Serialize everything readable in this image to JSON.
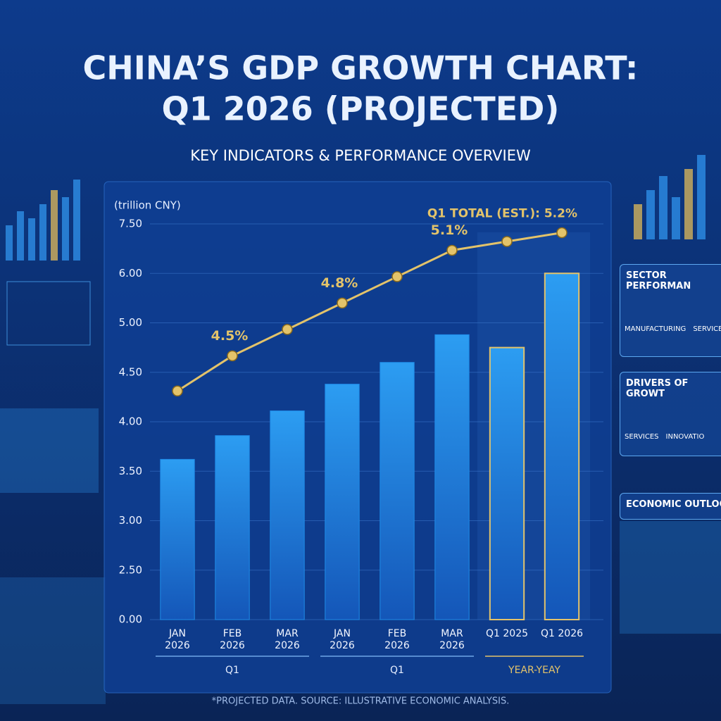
{
  "chart_data": {
    "type": "bar",
    "title": "CHINA’S GDP GROWTH CHART:",
    "title_line2": "Q1 2026 (PROJECTED)",
    "subtitle": "KEY INDICATORS & PERFORMANCE OVERVIEW",
    "y_label": "(trillion CNY)",
    "footnote": "*PROJECTED DATA. SOURCE: ILLUSTRATIVE ECONOMIC ANALYSIS.",
    "categories": [
      "JAN 2026",
      "FEB 2026",
      "MAR 2026",
      "JAN 2026",
      "FEB 2026",
      "MAR 2026",
      "Q1 2025",
      "Q1 2026"
    ],
    "groups": [
      {
        "label": "Q1",
        "count": 3
      },
      {
        "label": "Q1",
        "count": 3
      },
      {
        "label": "YEAR-YEAY",
        "count": 2,
        "color": "#e3c36a"
      }
    ],
    "series": [
      {
        "type": "bar",
        "color": "#1f8be8",
        "values": [
          3.62,
          3.86,
          4.11,
          4.38,
          4.6,
          4.88,
          4.75,
          6.0
        ]
      },
      {
        "type": "line",
        "color": "#e3c36a",
        "axis": "y2",
        "values": [
          4.3,
          4.5,
          4.65,
          4.8,
          4.95,
          5.1,
          5.15,
          5.2
        ],
        "value_labels": [
          null,
          "4.5%",
          null,
          "4.8%",
          null,
          "5.1%",
          null,
          "Q1 TOTAL (EST.): 5.2%"
        ]
      }
    ],
    "ylim": [
      0,
      7.5
    ],
    "yticks": [
      {
        "value": 0,
        "label": "0.00"
      },
      {
        "value": 2.5,
        "label": "2.50"
      },
      {
        "value": 3,
        "label": "3.00"
      },
      {
        "value": 3.5,
        "label": "3.50"
      },
      {
        "value": 4,
        "label": "4.00"
      },
      {
        "value": 4.5,
        "label": "4.50"
      },
      {
        "value": 5,
        "label": "5.00"
      },
      {
        "value": 6,
        "label": "6.00"
      },
      {
        "value": 7.5,
        "label": "7.50"
      }
    ],
    "y2lim": [
      3.0,
      5.25
    ],
    "grid": true
  },
  "side_panels": [
    {
      "title": "SECTOR PERFORMAN",
      "items": [
        "MANUFACTURING",
        "SERVICES"
      ]
    },
    {
      "title": "DRIVERS OF GROWT",
      "items": [
        "SERVICES",
        "INNOVATIO"
      ]
    },
    {
      "title": "ECONOMIC OUTLOO",
      "items": []
    }
  ]
}
